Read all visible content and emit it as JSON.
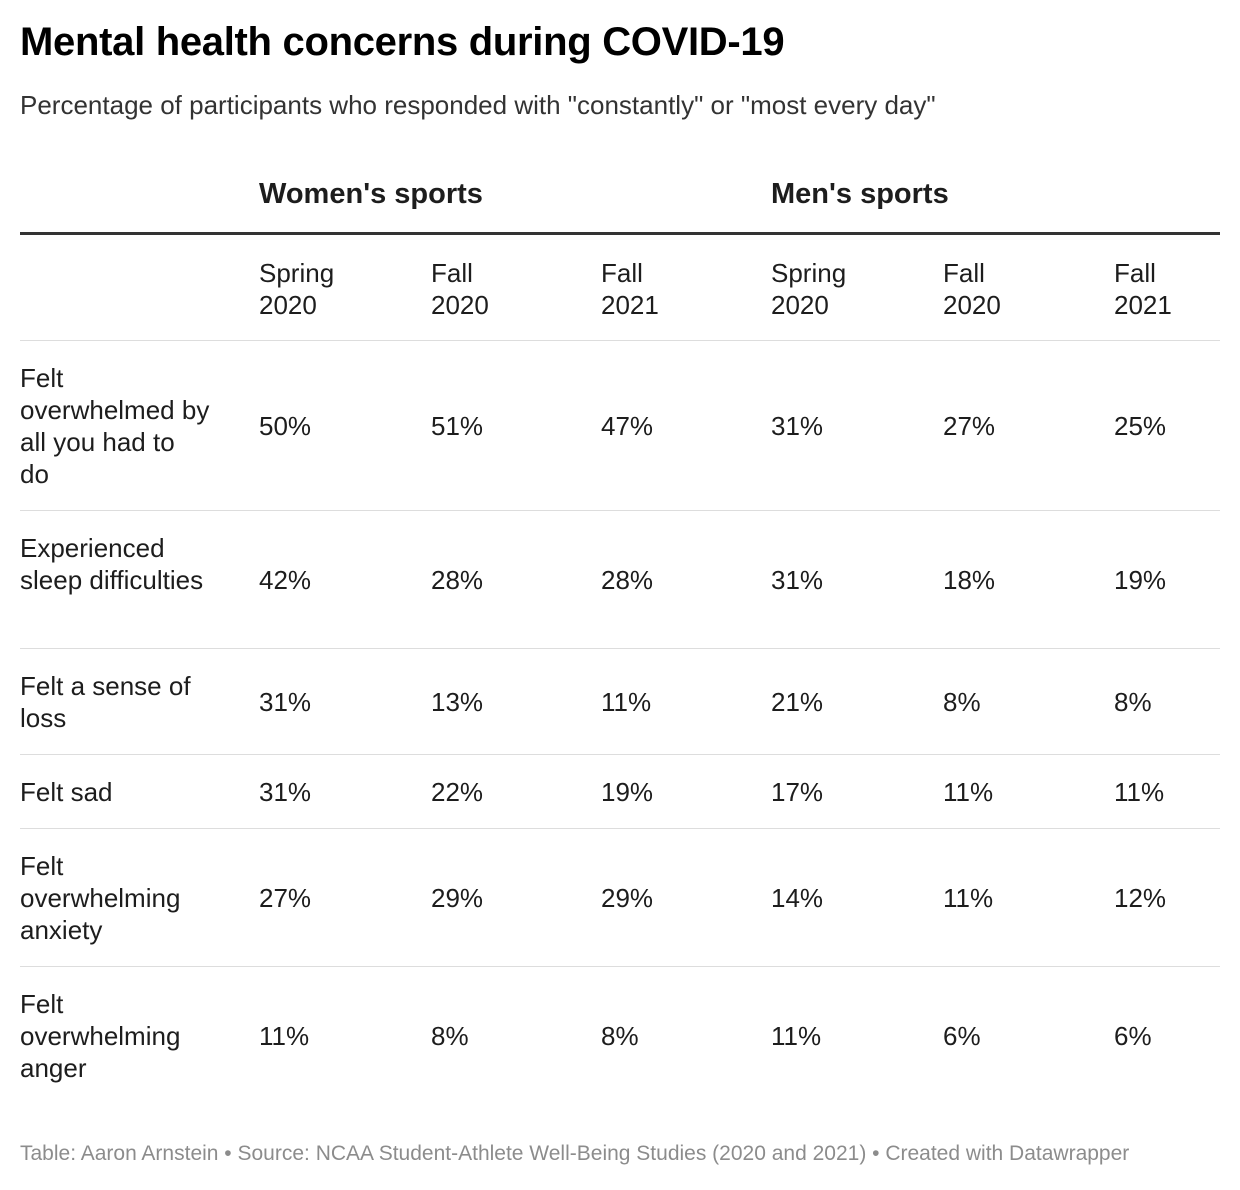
{
  "chart_data": {
    "type": "table",
    "title": "Mental health concerns during COVID-19",
    "subtitle": "Percentage of participants who responded with \"constantly\" or \"most every day\"",
    "groups": [
      "Women's sports",
      "Men's sports"
    ],
    "columns": [
      [
        "Spring",
        "2020"
      ],
      [
        "Fall",
        "2020"
      ],
      [
        "Fall",
        "2021"
      ],
      [
        "Spring",
        "2020"
      ],
      [
        "Fall",
        "2020"
      ],
      [
        "Fall",
        "2021"
      ]
    ],
    "rows": [
      {
        "label": "Felt overwhelmed by all you had to do",
        "values": [
          "50%",
          "51%",
          "47%",
          "31%",
          "27%",
          "25%"
        ]
      },
      {
        "label": "Experienced sleep difficulties",
        "values": [
          "42%",
          "28%",
          "28%",
          "31%",
          "18%",
          "19%"
        ]
      },
      {
        "label": "Felt a sense of loss",
        "values": [
          "31%",
          "13%",
          "11%",
          "21%",
          "8%",
          "8%"
        ]
      },
      {
        "label": "Felt sad",
        "values": [
          "31%",
          "22%",
          "19%",
          "17%",
          "11%",
          "11%"
        ]
      },
      {
        "label": "Felt overwhelming anxiety",
        "values": [
          "27%",
          "29%",
          "29%",
          "14%",
          "11%",
          "12%"
        ]
      },
      {
        "label": "Felt overwhelming anger",
        "values": [
          "11%",
          "8%",
          "8%",
          "11%",
          "6%",
          "6%"
        ]
      }
    ],
    "footer": "Table: Aaron Arnstein • Source: NCAA Student-Athlete Well-Being Studies (2020 and 2021) • Created with Datawrapper"
  },
  "colors": {
    "text": "#1d1d1d",
    "title": "#000000",
    "subtitle": "#333333",
    "rule": "#333333",
    "divider": "#dddddd",
    "footer": "#8c8c8c"
  }
}
